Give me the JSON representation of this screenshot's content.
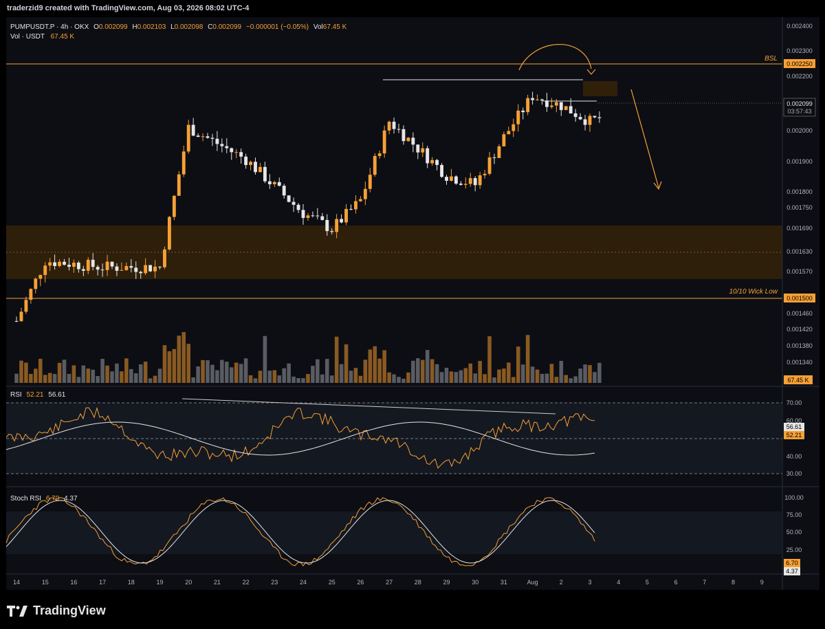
{
  "watermark": "traderzid9 created with TradingView.com, Aug 03, 2026 08:02 UTC-4",
  "brand": "TradingView",
  "header": {
    "symbol": "PUMPUSDT.P · 4h · OKX",
    "o_label": "O",
    "o": "0.002099",
    "h_label": "H",
    "h": "0.002103",
    "l_label": "L",
    "l": "0.002098",
    "c_label": "C",
    "c": "0.002099",
    "change": "−0.000001 (−0.05%)",
    "vol_label": "Vol",
    "vol": "67.45 K",
    "vol_series_label": "Vol · USDT",
    "vol_series_value": "67.45 K"
  },
  "price_axis": {
    "ticks": [
      "0.002400",
      "0.002300",
      "0.002200",
      "0.002000",
      "0.001900",
      "0.001800",
      "0.001750",
      "0.001690",
      "0.001630",
      "0.001570",
      "0.001460",
      "0.001420",
      "0.001380",
      "0.001340"
    ],
    "last_price": "0.002099",
    "countdown": "03:57:43",
    "vol_badge": "67.45 K"
  },
  "levels": [
    {
      "label": "BSL",
      "price": "0.002250",
      "color": "#f7a035"
    },
    {
      "label": "10/10 Wick Low",
      "price": "0.001500",
      "color": "#f7a035"
    }
  ],
  "rsi": {
    "title": "RSI",
    "value": "52.21",
    "ma": "56.61",
    "ticks": [
      "70.00",
      "60.00",
      "40.00",
      "30.00"
    ],
    "badge_ma": "56.61",
    "badge_value": "52.21"
  },
  "stoch": {
    "title": "Stoch RSI",
    "k": "6.70",
    "d": "4.37",
    "ticks": [
      "100.00",
      "75.00",
      "50.00",
      "25.00"
    ],
    "badge_k": "6.70",
    "badge_d": "4.37"
  },
  "time_axis": [
    "14",
    "15",
    "16",
    "17",
    "18",
    "19",
    "20",
    "21",
    "22",
    "23",
    "24",
    "25",
    "26",
    "27",
    "28",
    "29",
    "30",
    "31",
    "Aug",
    "2",
    "3",
    "4",
    "5",
    "6",
    "7",
    "8",
    "9"
  ],
  "colors": {
    "up": "#f7a035",
    "down": "#e6e6e6",
    "accent": "#f7a035",
    "background": "#0c0e14"
  },
  "chart_data": {
    "type": "candlestick",
    "symbol": "PUMPUSDT.P",
    "interval": "4h",
    "price_range": [
      0.00131,
      0.00243
    ],
    "zones": [
      {
        "from": 0.00155,
        "to": 0.0017
      },
      {
        "from": 0.00217,
        "to": 0.00219
      }
    ],
    "key_points": [
      {
        "date": "Jul 14",
        "close": 0.00147
      },
      {
        "date": "Jul 15",
        "close": 0.00166
      },
      {
        "date": "Jul 17",
        "close": 0.00164
      },
      {
        "date": "Jul 19",
        "close": 0.00164
      },
      {
        "date": "Jul 20",
        "close": 0.00208
      },
      {
        "date": "Jul 22",
        "close": 0.00198
      },
      {
        "date": "Jul 24",
        "close": 0.00181
      },
      {
        "date": "Jul 25",
        "close": 0.00176
      },
      {
        "date": "Jul 26",
        "close": 0.00185
      },
      {
        "date": "Jul 27",
        "close": 0.0021
      },
      {
        "date": "Jul 29",
        "close": 0.00193
      },
      {
        "date": "Jul 30",
        "close": 0.0019
      },
      {
        "date": "Jul 31",
        "close": 0.00205
      },
      {
        "date": "Aug 1",
        "close": 0.00218
      },
      {
        "date": "Aug 2",
        "close": 0.00215
      },
      {
        "date": "Aug 3",
        "close": 0.002099
      }
    ]
  }
}
